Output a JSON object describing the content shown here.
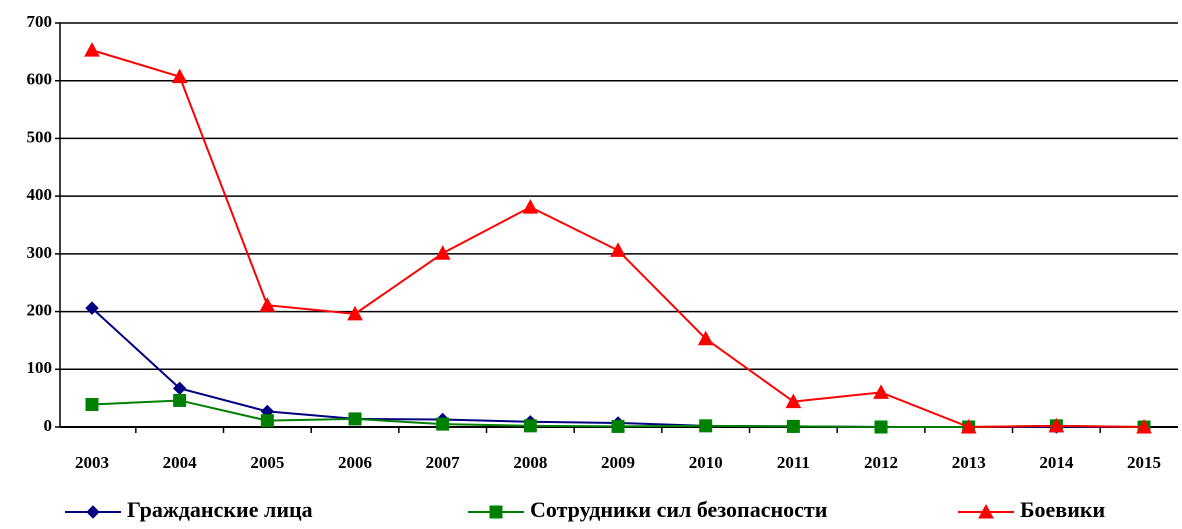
{
  "chart_data": {
    "type": "line",
    "categories": [
      "2003",
      "2004",
      "2005",
      "2006",
      "2007",
      "2008",
      "2009",
      "2010",
      "2011",
      "2012",
      "2013",
      "2014",
      "2015"
    ],
    "series": [
      {
        "name": "Гражданские лица",
        "color": "#000080",
        "marker": "diamond",
        "values": [
          206,
          67,
          27,
          14,
          13,
          9,
          7,
          2,
          1,
          0,
          0,
          0,
          0
        ]
      },
      {
        "name": "Сотрудники сил безопасности",
        "color": "#008000",
        "marker": "square",
        "values": [
          39,
          46,
          11,
          14,
          5,
          2,
          1,
          2,
          1,
          0,
          0,
          2,
          0
        ]
      },
      {
        "name": "Боевики",
        "color": "#ff0000",
        "marker": "triangle",
        "values": [
          653,
          607,
          211,
          196,
          301,
          381,
          306,
          153,
          44,
          60,
          0,
          2,
          0
        ]
      }
    ],
    "ylim": [
      0,
      700
    ],
    "yticks": [
      0,
      100,
      200,
      300,
      400,
      500,
      600,
      700
    ],
    "grid": true,
    "legend": "bottom"
  }
}
